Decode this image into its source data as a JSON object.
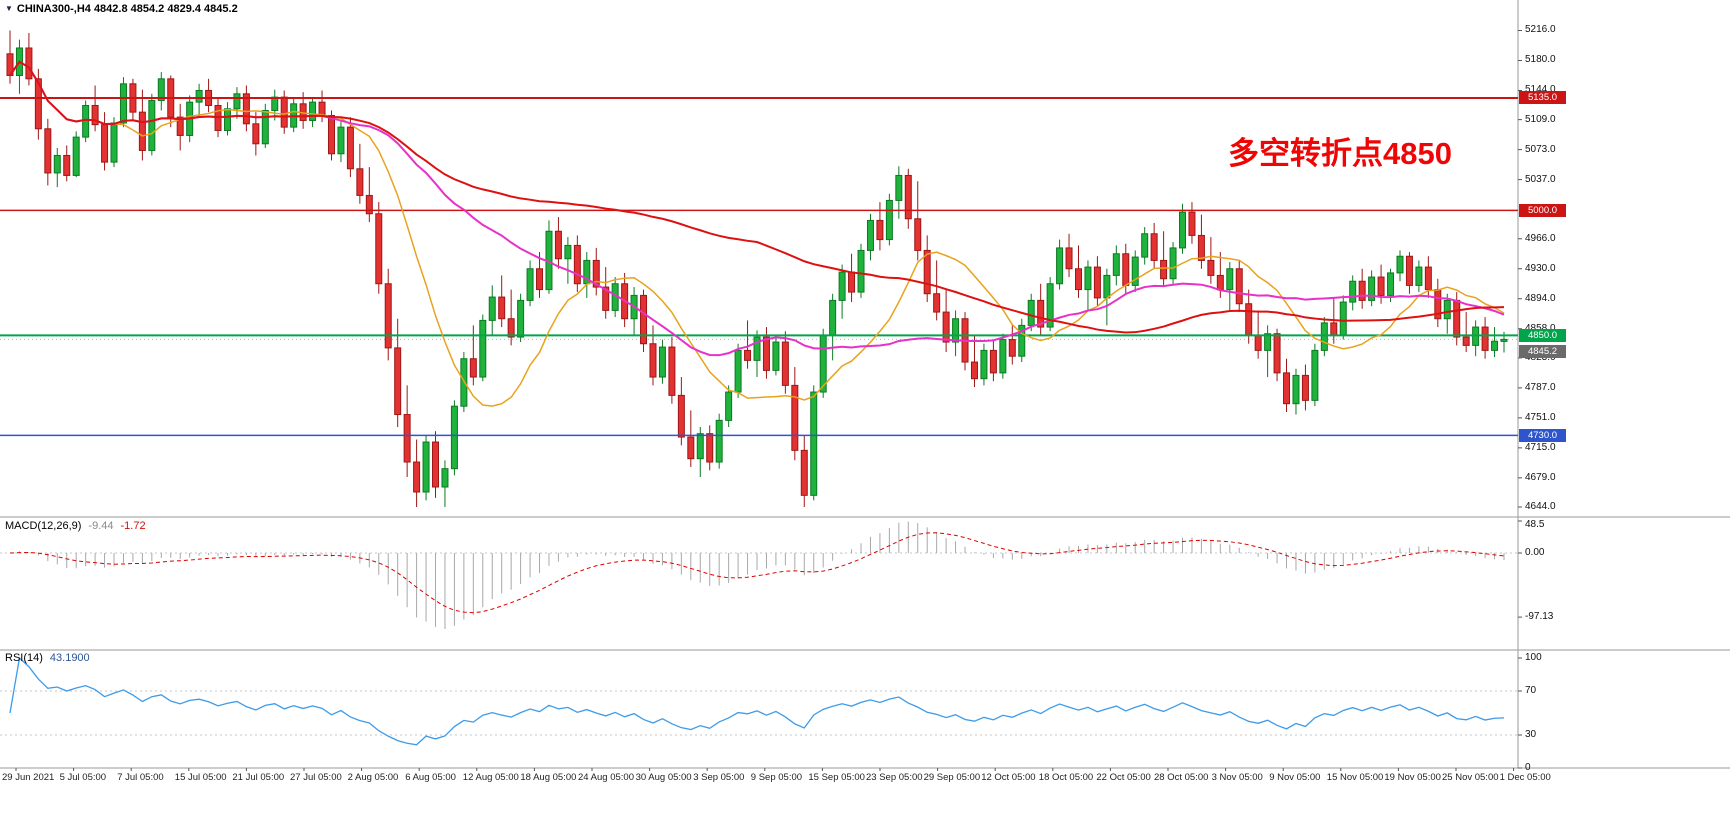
{
  "header": {
    "dropdown_icon": "▼",
    "symbol_info": "CHINA300-,H4  4842.8 4854.2 4829.4 4845.2"
  },
  "annotation": {
    "text": "多空转折点4850",
    "color": "#f00505"
  },
  "indicators": {
    "macd": {
      "label": "MACD(12,26,9)",
      "hist_value": "-9.44",
      "signal_value": "-1.72"
    },
    "rsi": {
      "label": "RSI(14)",
      "value_text": "43.1900"
    }
  },
  "colors": {
    "background": "#ffffff",
    "up": "#1fb23c",
    "up_border": "#0b7a22",
    "down": "#e23232",
    "down_border": "#9e1616",
    "ma_fast": "#e8a21e",
    "ma_mid": "#e632c8",
    "ma_slow": "#dd1111",
    "macd_hist": "#a8a8a8",
    "macd_signal": "#dd0000",
    "rsi_line": "#3d9be9",
    "separator": "#9a9a9a",
    "grid_dotted": "#c4c4c4",
    "axis_text": "#111111"
  },
  "chart_data": {
    "type": "candlestick",
    "symbol": "CHINA300-",
    "timeframe": "H4",
    "last_ohlc": {
      "open": 4842.8,
      "high": 4854.2,
      "low": 4829.4,
      "close": 4845.2
    },
    "y_axis": {
      "min": 4632,
      "max": 5243,
      "ticks": [
        5216.0,
        5180.0,
        5144.0,
        5109.0,
        5073.0,
        5037.0,
        4966.0,
        4930.0,
        4894.0,
        4858.0,
        4823.0,
        4787.0,
        4751.0,
        4715.0,
        4679.0,
        4644.0
      ]
    },
    "x_labels": [
      "29 Jun 2021",
      "5 Jul 05:00",
      "7 Jul 05:00",
      "15 Jul 05:00",
      "21 Jul 05:00",
      "27 Jul 05:00",
      "2 Aug 05:00",
      "6 Aug 05:00",
      "12 Aug 05:00",
      "18 Aug 05:00",
      "24 Aug 05:00",
      "30 Aug 05:00",
      "3 Sep 05:00",
      "9 Sep 05:00",
      "15 Sep 05:00",
      "23 Sep 05:00",
      "29 Sep 05:00",
      "12 Oct 05:00",
      "18 Oct 05:00",
      "22 Oct 05:00",
      "28 Oct 05:00",
      "3 Nov 05:00",
      "9 Nov 05:00",
      "15 Nov 05:00",
      "19 Nov 05:00",
      "25 Nov 05:00",
      "1 Dec 05:00"
    ],
    "overlays": {
      "horizontal_lines": [
        {
          "value": 5135.0,
          "label": "5135.0",
          "color": "#cc1414",
          "width": 2
        },
        {
          "value": 5000.0,
          "label": "5000.0",
          "color": "#cc1414",
          "width": 1.5
        },
        {
          "value": 4850.0,
          "label": "4850.0",
          "color": "#00a44a",
          "width": 2
        },
        {
          "value": 4730.0,
          "label": "4730.0",
          "color": "#2f55cc",
          "width": 1.5
        }
      ],
      "current_price": {
        "value": 4845.2,
        "label": "4845.2",
        "box_color": "#6a6a6a"
      },
      "moving_averages": [
        {
          "name": "MA-fast",
          "period": 12,
          "color": "#e8a21e",
          "width": 1.5
        },
        {
          "name": "MA-mid",
          "period": 34,
          "color": "#e632c8",
          "width": 2
        },
        {
          "name": "MA-slow",
          "period": 80,
          "color": "#dd1111",
          "width": 2
        }
      ]
    },
    "macd_panel": {
      "params": [
        12,
        26,
        9
      ],
      "last_histogram": -9.44,
      "last_signal": -1.72,
      "ticks": [
        48.5,
        0,
        -97.13
      ],
      "tick_labels": [
        "48.5",
        "0.00",
        "-97.13"
      ]
    },
    "rsi_panel": {
      "period": 14,
      "last_value": 43.19,
      "ticks": [
        100,
        70,
        30,
        0
      ],
      "levels": [
        70,
        30
      ]
    },
    "candles": [
      [
        5188,
        5216,
        5152,
        5162
      ],
      [
        5162,
        5205,
        5140,
        5195
      ],
      [
        5195,
        5213,
        5150,
        5158
      ],
      [
        5158,
        5170,
        5085,
        5098
      ],
      [
        5098,
        5110,
        5030,
        5045
      ],
      [
        5045,
        5075,
        5028,
        5066
      ],
      [
        5066,
        5078,
        5035,
        5042
      ],
      [
        5042,
        5095,
        5040,
        5088
      ],
      [
        5088,
        5132,
        5082,
        5126
      ],
      [
        5126,
        5150,
        5095,
        5103
      ],
      [
        5103,
        5118,
        5048,
        5058
      ],
      [
        5058,
        5112,
        5052,
        5105
      ],
      [
        5105,
        5160,
        5100,
        5152
      ],
      [
        5152,
        5158,
        5108,
        5118
      ],
      [
        5118,
        5145,
        5060,
        5072
      ],
      [
        5072,
        5140,
        5066,
        5132
      ],
      [
        5132,
        5166,
        5120,
        5158
      ],
      [
        5158,
        5162,
        5100,
        5112
      ],
      [
        5112,
        5128,
        5072,
        5090
      ],
      [
        5090,
        5138,
        5082,
        5130
      ],
      [
        5130,
        5152,
        5112,
        5144
      ],
      [
        5144,
        5158,
        5118,
        5126
      ],
      [
        5126,
        5135,
        5088,
        5096
      ],
      [
        5096,
        5130,
        5090,
        5122
      ],
      [
        5122,
        5148,
        5110,
        5140
      ],
      [
        5140,
        5150,
        5095,
        5104
      ],
      [
        5104,
        5118,
        5066,
        5080
      ],
      [
        5080,
        5128,
        5075,
        5120
      ],
      [
        5120,
        5145,
        5108,
        5136
      ],
      [
        5136,
        5144,
        5092,
        5100
      ],
      [
        5100,
        5135,
        5094,
        5128
      ],
      [
        5128,
        5142,
        5098,
        5108
      ],
      [
        5108,
        5136,
        5100,
        5130
      ],
      [
        5130,
        5144,
        5106,
        5114
      ],
      [
        5114,
        5120,
        5060,
        5068
      ],
      [
        5068,
        5108,
        5058,
        5100
      ],
      [
        5100,
        5112,
        5040,
        5050
      ],
      [
        5050,
        5080,
        5008,
        5018
      ],
      [
        5018,
        5052,
        4986,
        4996
      ],
      [
        4996,
        5010,
        4900,
        4912
      ],
      [
        4912,
        4930,
        4820,
        4835
      ],
      [
        4835,
        4870,
        4740,
        4755
      ],
      [
        4755,
        4790,
        4680,
        4698
      ],
      [
        4698,
        4725,
        4644,
        4662
      ],
      [
        4662,
        4730,
        4652,
        4722
      ],
      [
        4722,
        4735,
        4655,
        4668
      ],
      [
        4668,
        4700,
        4644,
        4690
      ],
      [
        4690,
        4772,
        4682,
        4765
      ],
      [
        4765,
        4830,
        4758,
        4822
      ],
      [
        4822,
        4862,
        4790,
        4800
      ],
      [
        4800,
        4875,
        4795,
        4868
      ],
      [
        4868,
        4910,
        4850,
        4896
      ],
      [
        4896,
        4922,
        4860,
        4870
      ],
      [
        4870,
        4905,
        4838,
        4848
      ],
      [
        4848,
        4900,
        4842,
        4892
      ],
      [
        4892,
        4940,
        4885,
        4930
      ],
      [
        4930,
        4950,
        4895,
        4905
      ],
      [
        4905,
        4988,
        4900,
        4975
      ],
      [
        4975,
        4992,
        4930,
        4942
      ],
      [
        4942,
        4968,
        4912,
        4958
      ],
      [
        4958,
        4970,
        4902,
        4912
      ],
      [
        4912,
        4950,
        4895,
        4940
      ],
      [
        4940,
        4955,
        4898,
        4908
      ],
      [
        4908,
        4932,
        4870,
        4880
      ],
      [
        4880,
        4920,
        4872,
        4912
      ],
      [
        4912,
        4925,
        4860,
        4870
      ],
      [
        4870,
        4908,
        4850,
        4898
      ],
      [
        4898,
        4905,
        4830,
        4840
      ],
      [
        4840,
        4862,
        4790,
        4800
      ],
      [
        4800,
        4845,
        4792,
        4836
      ],
      [
        4836,
        4848,
        4768,
        4778
      ],
      [
        4778,
        4800,
        4718,
        4728
      ],
      [
        4728,
        4760,
        4692,
        4702
      ],
      [
        4702,
        4740,
        4680,
        4732
      ],
      [
        4732,
        4742,
        4688,
        4698
      ],
      [
        4698,
        4756,
        4690,
        4748
      ],
      [
        4748,
        4790,
        4740,
        4782
      ],
      [
        4782,
        4840,
        4775,
        4832
      ],
      [
        4832,
        4868,
        4810,
        4820
      ],
      [
        4820,
        4856,
        4800,
        4848
      ],
      [
        4848,
        4860,
        4798,
        4808
      ],
      [
        4808,
        4850,
        4802,
        4842
      ],
      [
        4842,
        4855,
        4780,
        4790
      ],
      [
        4790,
        4812,
        4700,
        4712
      ],
      [
        4712,
        4730,
        4644,
        4658
      ],
      [
        4658,
        4790,
        4652,
        4782
      ],
      [
        4782,
        4858,
        4775,
        4850
      ],
      [
        4850,
        4900,
        4820,
        4892
      ],
      [
        4892,
        4935,
        4870,
        4926
      ],
      [
        4926,
        4948,
        4890,
        4902
      ],
      [
        4902,
        4960,
        4895,
        4952
      ],
      [
        4952,
        4996,
        4940,
        4988
      ],
      [
        4988,
        5010,
        4952,
        4965
      ],
      [
        4965,
        5020,
        4958,
        5012
      ],
      [
        5012,
        5053,
        4990,
        5042
      ],
      [
        5042,
        5050,
        4978,
        4990
      ],
      [
        4990,
        5035,
        4940,
        4952
      ],
      [
        4952,
        4970,
        4890,
        4900
      ],
      [
        4900,
        4940,
        4868,
        4878
      ],
      [
        4878,
        4905,
        4830,
        4842
      ],
      [
        4842,
        4880,
        4825,
        4870
      ],
      [
        4870,
        4878,
        4808,
        4818
      ],
      [
        4818,
        4850,
        4788,
        4798
      ],
      [
        4798,
        4840,
        4790,
        4832
      ],
      [
        4832,
        4845,
        4795,
        4805
      ],
      [
        4805,
        4852,
        4798,
        4845
      ],
      [
        4845,
        4862,
        4815,
        4825
      ],
      [
        4825,
        4870,
        4818,
        4862
      ],
      [
        4862,
        4900,
        4855,
        4892
      ],
      [
        4892,
        4912,
        4850,
        4860
      ],
      [
        4860,
        4920,
        4855,
        4912
      ],
      [
        4912,
        4965,
        4905,
        4955
      ],
      [
        4955,
        4972,
        4920,
        4930
      ],
      [
        4930,
        4958,
        4895,
        4905
      ],
      [
        4905,
        4940,
        4880,
        4932
      ],
      [
        4932,
        4945,
        4885,
        4895
      ],
      [
        4895,
        4930,
        4862,
        4922
      ],
      [
        4922,
        4958,
        4910,
        4948
      ],
      [
        4948,
        4960,
        4900,
        4910
      ],
      [
        4910,
        4952,
        4902,
        4944
      ],
      [
        4944,
        4980,
        4935,
        4972
      ],
      [
        4972,
        4985,
        4930,
        4940
      ],
      [
        4940,
        4975,
        4908,
        4918
      ],
      [
        4918,
        4962,
        4912,
        4955
      ],
      [
        4955,
        5008,
        4948,
        4998
      ],
      [
        4998,
        5010,
        4960,
        4970
      ],
      [
        4970,
        4995,
        4930,
        4940
      ],
      [
        4940,
        4968,
        4912,
        4922
      ],
      [
        4922,
        4950,
        4895,
        4905
      ],
      [
        4905,
        4938,
        4880,
        4930
      ],
      [
        4930,
        4940,
        4878,
        4888
      ],
      [
        4888,
        4905,
        4840,
        4850
      ],
      [
        4850,
        4880,
        4822,
        4832
      ],
      [
        4832,
        4862,
        4800,
        4852
      ],
      [
        4852,
        4858,
        4795,
        4805
      ],
      [
        4805,
        4822,
        4758,
        4768
      ],
      [
        4768,
        4810,
        4755,
        4802
      ],
      [
        4802,
        4815,
        4760,
        4772
      ],
      [
        4772,
        4840,
        4765,
        4832
      ],
      [
        4832,
        4872,
        4825,
        4865
      ],
      [
        4865,
        4895,
        4840,
        4850
      ],
      [
        4850,
        4898,
        4845,
        4890
      ],
      [
        4890,
        4922,
        4880,
        4915
      ],
      [
        4915,
        4930,
        4882,
        4892
      ],
      [
        4892,
        4928,
        4885,
        4920
      ],
      [
        4920,
        4935,
        4888,
        4898
      ],
      [
        4898,
        4930,
        4890,
        4925
      ],
      [
        4925,
        4952,
        4915,
        4945
      ],
      [
        4945,
        4950,
        4900,
        4910
      ],
      [
        4910,
        4940,
        4902,
        4932
      ],
      [
        4932,
        4945,
        4895,
        4905
      ],
      [
        4905,
        4918,
        4860,
        4870
      ],
      [
        4870,
        4900,
        4852,
        4892
      ],
      [
        4892,
        4902,
        4838,
        4848
      ],
      [
        4848,
        4878,
        4830,
        4838
      ],
      [
        4838,
        4868,
        4825,
        4860
      ],
      [
        4860,
        4872,
        4822,
        4832
      ],
      [
        4832,
        4860,
        4824,
        4843
      ],
      [
        4842.8,
        4854.2,
        4829.4,
        4845.2
      ]
    ]
  }
}
